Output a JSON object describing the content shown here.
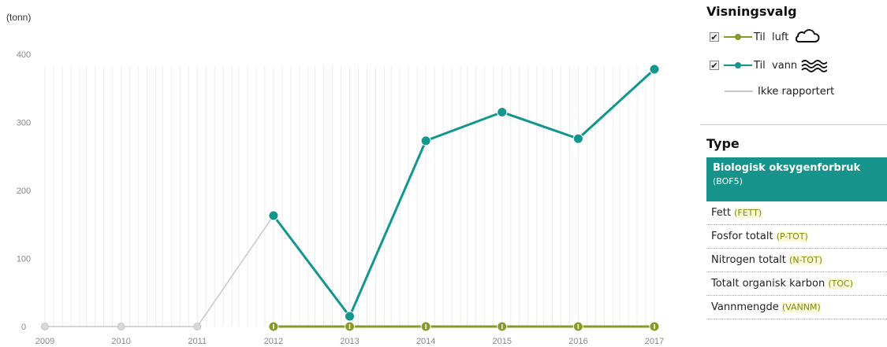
{
  "chart_data": {
    "type": "line",
    "y_unit": "(tonn)",
    "x": [
      "2009",
      "2010",
      "2011",
      "2012",
      "2013",
      "2014",
      "2015",
      "2016",
      "2017"
    ],
    "ylim": [
      0,
      430
    ],
    "yticks": [
      0,
      100,
      200,
      300,
      400
    ],
    "grid": true,
    "series": [
      {
        "name": "Til luft",
        "color": "#8a9a2a",
        "values": [
          null,
          null,
          null,
          0,
          0,
          0,
          0,
          0,
          0
        ]
      },
      {
        "name": "Til vann",
        "color": "#12968d",
        "values": [
          null,
          null,
          null,
          163,
          15,
          273,
          315,
          276,
          378
        ]
      },
      {
        "name": "Ikke rapportert",
        "color": "#c8c8c8",
        "values": [
          0,
          0,
          0,
          163,
          null,
          null,
          null,
          null,
          null
        ]
      }
    ]
  },
  "panel": {
    "visningsvalg_title": "Visningsvalg",
    "legend": [
      {
        "label": "Til  luft",
        "checked": "✔",
        "icon": "cloud-icon"
      },
      {
        "label": "Til  vann",
        "checked": "✔",
        "icon": "water-waves-icon"
      },
      {
        "label": "Ikke rapportert"
      }
    ],
    "type_title": "Type",
    "selected": {
      "name": "Biologisk oksygenforbruk",
      "code": "(BOF5)"
    },
    "types": [
      {
        "name": "Fett",
        "code": "(FETT)"
      },
      {
        "name": "Fosfor totalt",
        "code": "(P-TOT)"
      },
      {
        "name": "Nitrogen totalt",
        "code": "(N-TOT)"
      },
      {
        "name": "Totalt organisk karbon",
        "code": "(TOC)"
      },
      {
        "name": "Vannmengde",
        "code": "(VANNM)"
      }
    ]
  }
}
